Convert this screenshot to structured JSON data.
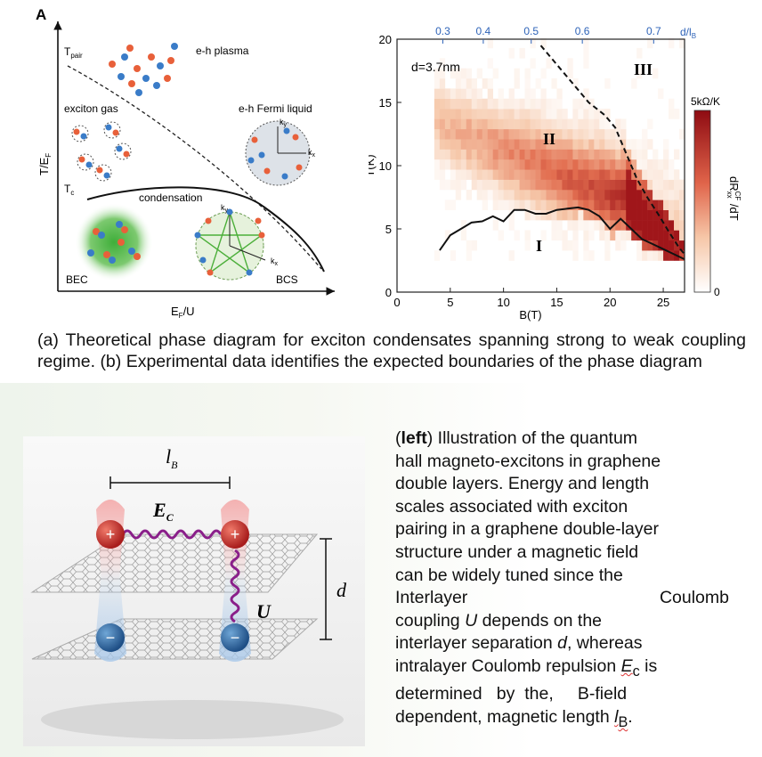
{
  "panel_a": {
    "label": "A",
    "y_axis_label": "T/E",
    "y_axis_sub": "F",
    "x_axis_label": "E",
    "x_axis_sub": "F",
    "x_axis_suffix": "/U",
    "t_pair_label": "T",
    "t_pair_sub": "pair",
    "t_c_label": "T",
    "t_c_sub": "c",
    "regions": {
      "eh_plasma": "e-h plasma",
      "exciton_gas": "exciton gas",
      "eh_fermi_liquid": "e-h Fermi liquid",
      "condensation": "condensation",
      "bec": "BEC",
      "bcs": "BCS"
    },
    "kx": "k",
    "kx_sub": "x",
    "ky": "k",
    "ky_sub": "y"
  },
  "chart_data": {
    "type": "heatmap",
    "xlabel": "B(T)",
    "ylabel": "T(K)",
    "x_ticks": [
      "0",
      "5",
      "10",
      "15",
      "20",
      "25"
    ],
    "y_ticks": [
      "0",
      "5",
      "10",
      "15",
      "20"
    ],
    "xlim": [
      0,
      27
    ],
    "ylim": [
      0,
      20
    ],
    "top_axis_label": "d/l",
    "top_axis_label_sub": "B",
    "top_ticks": [
      "0.3",
      "0.4",
      "0.5",
      "0.6",
      "0.7"
    ],
    "top_tick_positions_B": [
      4.3,
      8.1,
      12.6,
      17.4,
      24.1
    ],
    "annotation": "d=3.7nm",
    "regions": [
      "I",
      "II",
      "III"
    ],
    "colorbar": {
      "max_label": "5kΩ/K",
      "min_label": "0",
      "label": "dR",
      "label_sub": "xx",
      "label_sup": "CF",
      "label_suffix": " /dT"
    },
    "series": [
      {
        "style": "solid",
        "x": [
          4,
          5,
          6,
          7,
          8,
          9,
          10,
          11,
          12,
          13,
          14,
          15,
          16,
          17,
          18,
          19,
          20,
          21,
          22,
          23,
          24,
          25,
          26,
          27
        ],
        "y": [
          3.3,
          4.5,
          5.0,
          5.5,
          5.6,
          6.0,
          5.6,
          6.5,
          6.5,
          6.2,
          6.2,
          6.5,
          6.6,
          6.7,
          6.5,
          6.0,
          5.0,
          5.8,
          5.0,
          4.2,
          3.8,
          3.4,
          3.0,
          2.6
        ]
      },
      {
        "style": "dashed",
        "x": [
          13.5,
          15,
          16.5,
          18,
          19.5,
          20.5,
          21.5,
          22.5,
          23.5,
          24.5,
          25.5,
          26.5,
          27
        ],
        "y": [
          19.5,
          18.0,
          16.5,
          15.0,
          14.0,
          13.0,
          11.0,
          9.0,
          7.5,
          6.2,
          4.8,
          3.5,
          3.0
        ]
      }
    ]
  },
  "figure_caption": "(a) Theoretical phase diagram for exciton condensates spanning strong to weak coupling regime.  (b) Experimental data identifies the expected boundaries of the phase diagram",
  "illustration": {
    "lb_label": "l",
    "lb_sub": "B",
    "ec_label": "E",
    "ec_sub": "C",
    "d_label": "d",
    "u_label": "U",
    "plus": "+",
    "minus": "−"
  },
  "side_caption": {
    "bold_word": "left",
    "open_paren": "(",
    "close_rest": ") Illustration of the quantum",
    "lines": [
      "hall magneto-excitons in graphene",
      "double layers.  Energy and length",
      "scales associated with exciton",
      "pairing in a graphene double-layer",
      "structure under a magnetic field",
      "can be widely tuned since the"
    ],
    "line_interlayer_left": "Interlayer",
    "line_interlayer_right": "Coulomb",
    "line_coupling_pre": "coupling ",
    "U": "U",
    "line_coupling_post": " depends on the",
    "line_sep_pre": "interlayer separation ",
    "d": "d",
    "line_sep_post": ", whereas",
    "line_intra_pre": "intralayer Coulomb repulsion ",
    "Ec_main": "E",
    "Ec_sub": "c",
    "line_intra_post": " is",
    "line_det": "determined   by  the,     B-field",
    "line_dep_pre": "dependent, magnetic length ",
    "lB_main": "l",
    "lB_sub": "B",
    "line_dep_post": "."
  }
}
